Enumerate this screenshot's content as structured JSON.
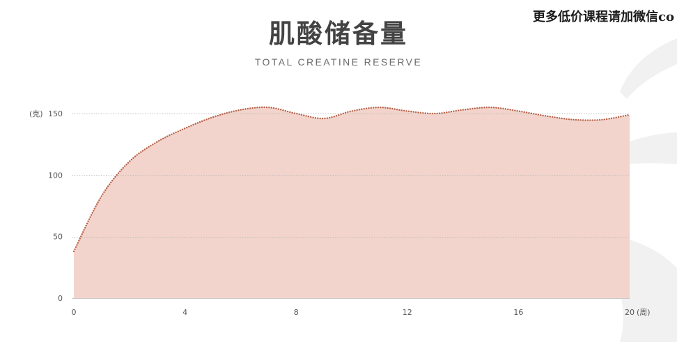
{
  "watermark": "更多低价课程请加微信co",
  "chart_data": {
    "type": "area",
    "title": "肌酸储备量",
    "subtitle": "TOTAL CREATINE RESERVE",
    "x": [
      0,
      1,
      2,
      3,
      4,
      5,
      6,
      7,
      8,
      9,
      10,
      11,
      12,
      13,
      14,
      15,
      16,
      17,
      18,
      19,
      20
    ],
    "series": [
      {
        "values": [
          38,
          83,
          111,
          127,
          138,
          147,
          153,
          155,
          150,
          146,
          152,
          155,
          152,
          150,
          153,
          155,
          152,
          148,
          145,
          145,
          149
        ]
      }
    ],
    "xlabel": "(周)",
    "ylabel": "(克)",
    "x_ticks": [
      0,
      4,
      8,
      12,
      16,
      20
    ],
    "y_ticks": [
      0,
      50,
      100,
      150
    ],
    "xlim": [
      0,
      20
    ],
    "ylim": [
      0,
      150
    ],
    "grid": true,
    "colors": {
      "area_fill": "#f2d4cc",
      "line": "#b8644a",
      "grid": "#b9b9b9",
      "axis": "#c9c9c9"
    }
  }
}
